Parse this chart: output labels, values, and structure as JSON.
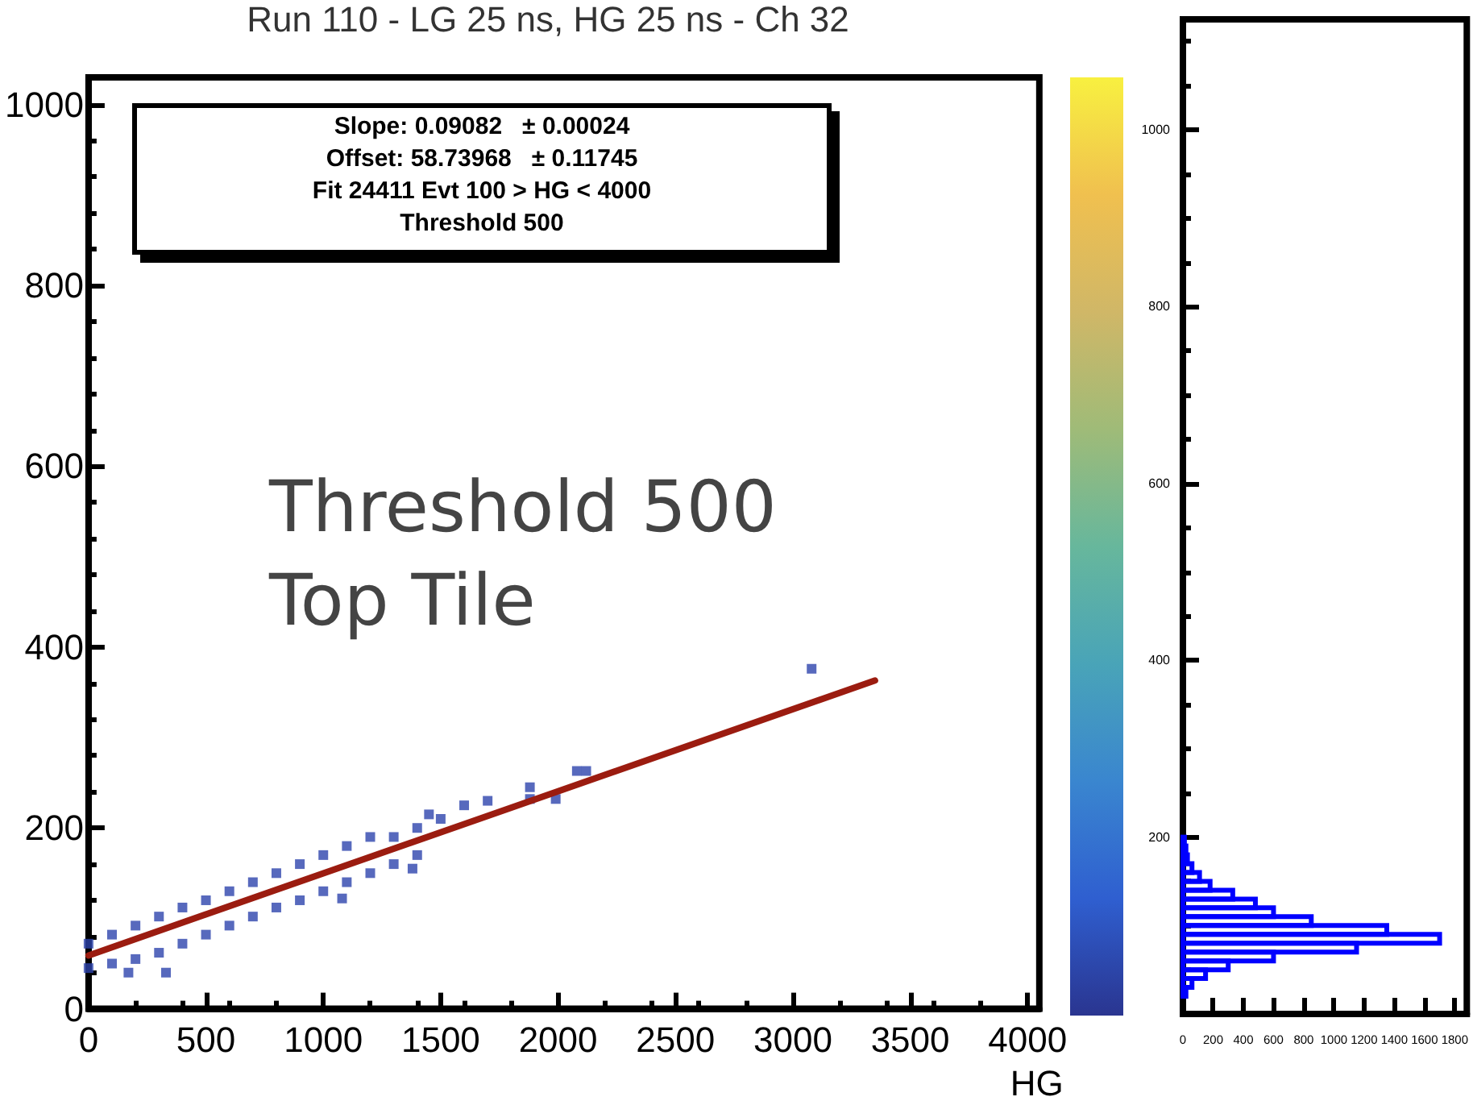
{
  "chart_data": [
    {
      "type": "scatter",
      "title": "Run 110 - LG 25 ns, HG 25 ns - Ch 32",
      "xlabel": "HG",
      "annotations": [
        "Slope: 0.09082   ± 0.00024",
        "Offset: 58.73968   ± 0.11745",
        "Fit 24411 Evt 100 > HG < 4000",
        "Threshold 500",
        "Threshold 500",
        "Top Tile"
      ],
      "xlim": [
        0,
        4050
      ],
      "ylim": [
        0,
        1030
      ],
      "xticks": [
        0,
        500,
        1000,
        1500,
        2000,
        2500,
        3000,
        3500,
        4000
      ],
      "yticks": [
        0,
        200,
        400,
        600,
        800,
        1000
      ],
      "grid": false,
      "marker": "square",
      "series": [
        {
          "color": "#2d44ad",
          "x": [
            0,
            100,
            200,
            300,
            400,
            500,
            600,
            700,
            800,
            900,
            1000,
            1100,
            1200,
            1300,
            1400,
            1500,
            0,
            100,
            200,
            300,
            400,
            500,
            600,
            700,
            800,
            900,
            1000,
            1100,
            1200,
            1300,
            1400,
            3080,
            2080,
            2120,
            1880,
            1880,
            1990,
            1450,
            1700,
            1600,
            330,
            170,
            1080,
            1380
          ],
          "values": [
            72,
            82,
            92,
            102,
            112,
            120,
            130,
            140,
            150,
            160,
            170,
            180,
            190,
            190,
            200,
            210,
            45,
            50,
            55,
            62,
            72,
            82,
            92,
            102,
            112,
            120,
            130,
            140,
            150,
            160,
            170,
            376,
            263,
            263,
            232,
            245,
            232,
            215,
            230,
            225,
            40,
            40,
            122,
            155
          ]
        },
        {
          "type": "line",
          "color": "#9b1c10",
          "marker": "none",
          "line_style": "solid",
          "x": [
            0,
            3350
          ],
          "values": [
            59,
            363
          ]
        }
      ]
    },
    {
      "type": "histogram",
      "orientation": "horizontal",
      "color": "#0000ff",
      "bins": [
        20,
        30,
        40,
        50,
        60,
        70,
        80,
        90,
        100,
        110,
        120,
        130,
        140,
        150,
        160,
        170,
        180,
        190,
        200
      ],
      "values": [
        20,
        60,
        150,
        300,
        600,
        1150,
        1700,
        1350,
        850,
        600,
        480,
        330,
        180,
        110,
        60,
        30,
        20,
        10
      ],
      "xlim": [
        0,
        1880
      ],
      "ylim": [
        0,
        1125
      ],
      "xticks": [
        0,
        200,
        400,
        600,
        800,
        1000,
        1200,
        1400,
        1600,
        1800
      ],
      "yticks": [
        200,
        400,
        600,
        800,
        1000
      ],
      "grid": false
    }
  ]
}
